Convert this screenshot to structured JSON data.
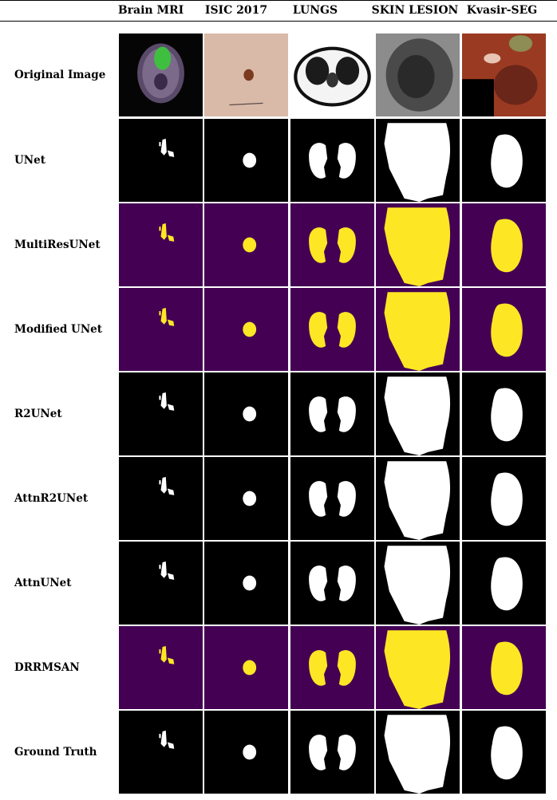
{
  "columns": [
    "Brain MRI",
    "ISIC 2017",
    "LUNGS",
    "SKIN LESION",
    "Kvasir-SEG"
  ],
  "rows": [
    {
      "label": "Original Image",
      "style": "original"
    },
    {
      "label": "UNet",
      "style": "bw"
    },
    {
      "label": "MultiResUNet",
      "style": "viridis"
    },
    {
      "label": "Modified UNet",
      "style": "viridis"
    },
    {
      "label": "R2UNet",
      "style": "bw"
    },
    {
      "label": "AttnR2UNet",
      "style": "bw"
    },
    {
      "label": "AttnUNet",
      "style": "bw"
    },
    {
      "label": "DRRMSAN",
      "style": "viridis"
    },
    {
      "label": "Ground Truth",
      "style": "bw"
    }
  ],
  "colors": {
    "mask_background_bw": "#000000",
    "mask_foreground_bw": "#ffffff",
    "mask_background_viridis": "#440154",
    "mask_foreground_viridis": "#fde725"
  }
}
